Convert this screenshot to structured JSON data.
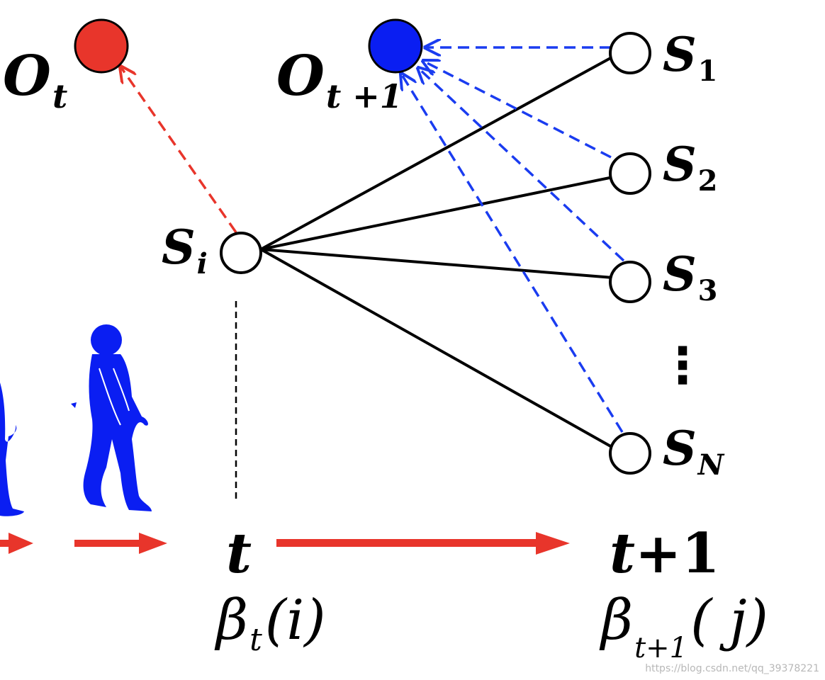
{
  "colors": {
    "observation_t": "#e8352b",
    "observation_t1": "#0a1ef2",
    "state_fill": "#ffffff",
    "state_stroke": "#000000",
    "transition_line": "#000000",
    "emission_red": "#e8352b",
    "emission_blue": "#1a3cf0",
    "time_arrow": "#e8352b",
    "walker": "#0a1ef2"
  },
  "observations": {
    "o_t": {
      "main": "O",
      "sub": "t"
    },
    "o_t1": {
      "main": "O",
      "sub": "t +1"
    }
  },
  "states": {
    "si": {
      "main": "S",
      "sub": "i"
    },
    "targets": [
      {
        "main": "S",
        "sub": "1"
      },
      {
        "main": "S",
        "sub": "2"
      },
      {
        "main": "S",
        "sub": "3"
      },
      {
        "main": "S",
        "sub": "N"
      }
    ],
    "ellipsis": "⋮"
  },
  "time": {
    "t": "t",
    "t_plus": "t",
    "t_plus_num": "+1"
  },
  "beta": {
    "left": {
      "symbol": "β",
      "sub": "t",
      "arg": "(i)"
    },
    "right": {
      "symbol": "β",
      "sub": "t+1",
      "arg": "( j)"
    }
  },
  "watermark": "https://blog.csdn.net/qq_39378221"
}
